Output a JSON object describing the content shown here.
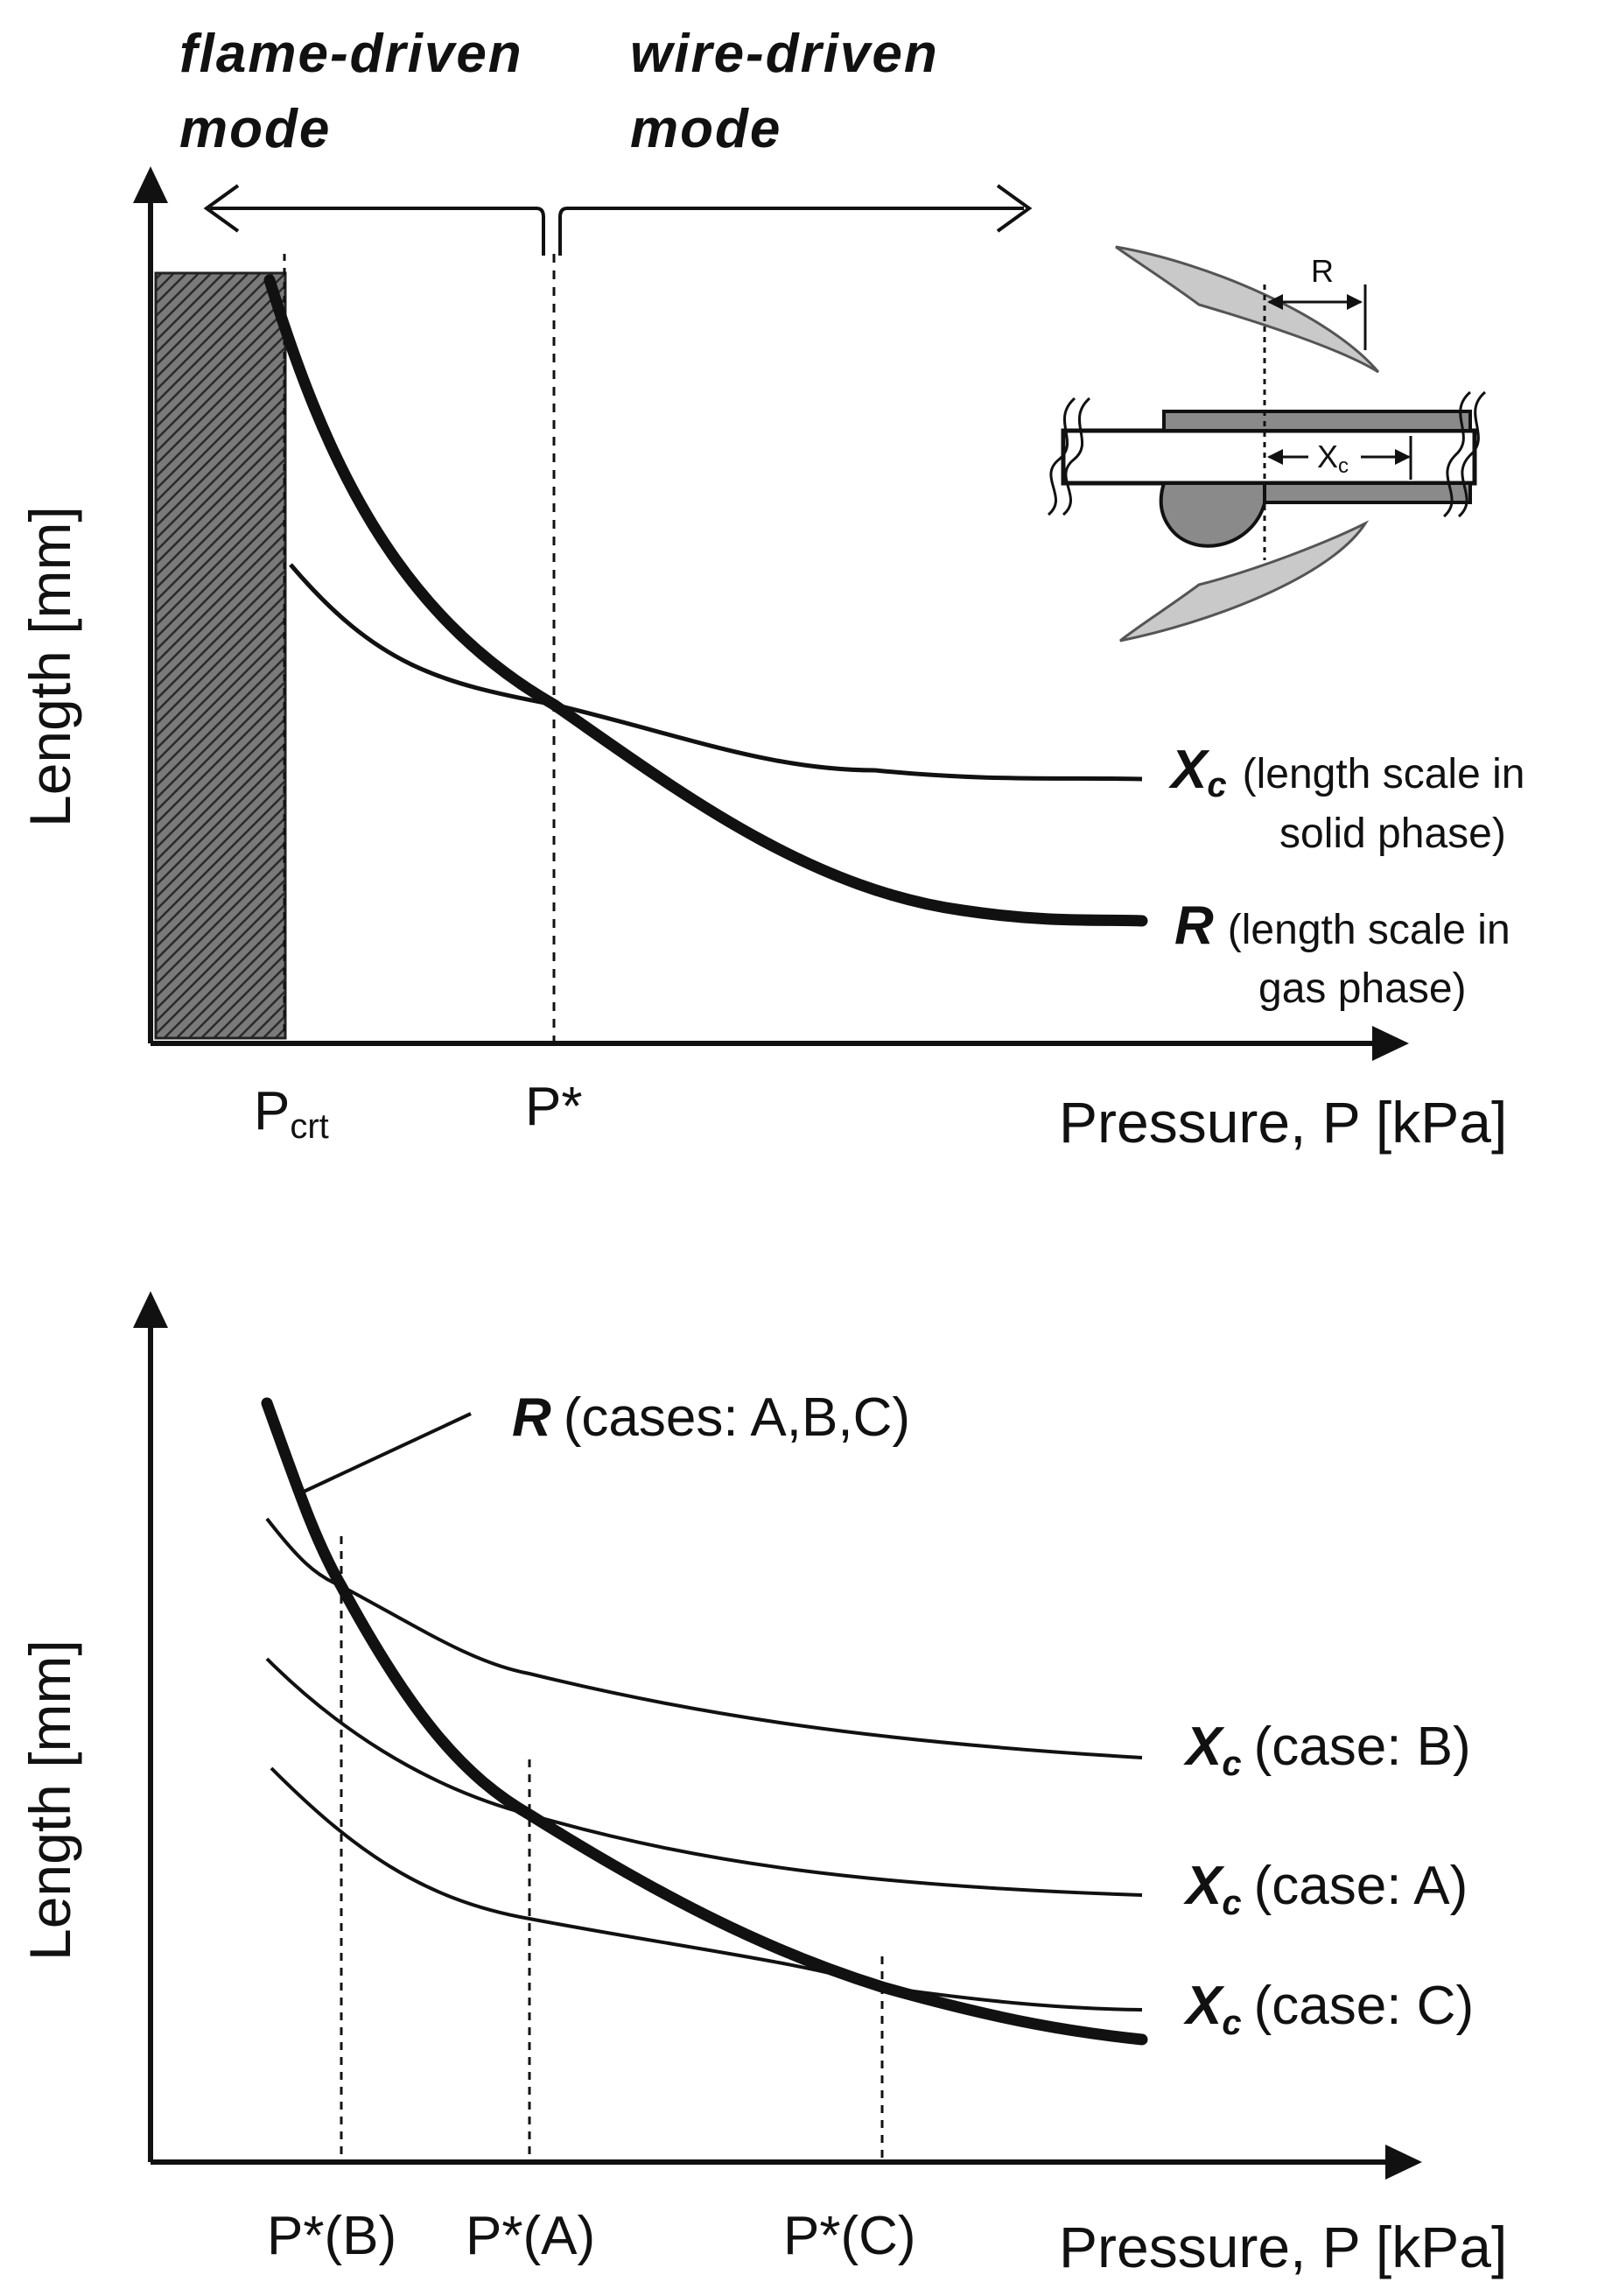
{
  "top_panel": {
    "mode_left_line1": "flame-driven",
    "mode_left_line2": "mode",
    "mode_right_line1": "wire-driven",
    "mode_right_line2": "mode",
    "y_axis_title": "Length [mm]",
    "x_axis_title": "Pressure, P [kPa]",
    "tick_pcrt_main": "P",
    "tick_pcrt_sub": "crt",
    "tick_pstar": "P*",
    "curve_xc": {
      "symbol": "X",
      "sub": "c",
      "desc_line1": "(length scale in",
      "desc_line2": "solid phase)"
    },
    "curve_r": {
      "symbol": "R",
      "desc_line1": "(length scale in",
      "desc_line2": "gas phase)"
    },
    "inset": {
      "label_r": "R",
      "label_x_main": "X",
      "label_x_sub": "c"
    }
  },
  "bottom_panel": {
    "y_axis_title": "Length [mm]",
    "x_axis_title": "Pressure, P [kPa]",
    "curve_r": {
      "symbol": "R",
      "desc": "(cases: A,B,C)"
    },
    "curve_xc_b": {
      "symbol": "X",
      "sub": "c",
      "desc": "(case: B)"
    },
    "curve_xc_a": {
      "symbol": "X",
      "sub": "c",
      "desc": "(case: A)"
    },
    "curve_xc_c": {
      "symbol": "X",
      "sub": "c",
      "desc": "(case: C)"
    },
    "tick_b": "P*(B)",
    "tick_a": "P*(A)",
    "tick_c": "P*(C)"
  }
}
